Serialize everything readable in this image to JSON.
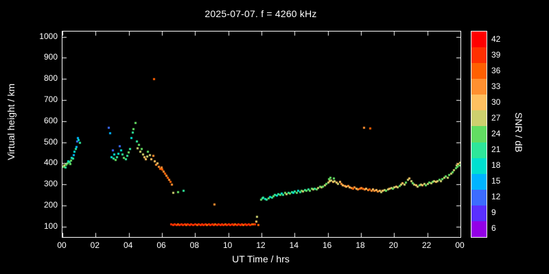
{
  "title": "2025-07-07. f = 4260 kHz",
  "chart_data": {
    "type": "scatter",
    "title": "2025-07-07. f = 4260 kHz",
    "xlabel": "UT Time / hrs",
    "ylabel": "Virtual height / km",
    "xlim": [
      0,
      24
    ],
    "ylim": [
      50,
      1025
    ],
    "background": "#000000",
    "frame_color": "#ffffff",
    "x_ticks": {
      "values": [
        0,
        2,
        4,
        6,
        8,
        10,
        12,
        14,
        16,
        18,
        20,
        22,
        24
      ],
      "labels": [
        "00",
        "02",
        "04",
        "06",
        "08",
        "10",
        "12",
        "14",
        "16",
        "18",
        "20",
        "22",
        "00"
      ]
    },
    "y_ticks": [
      100,
      200,
      300,
      400,
      500,
      600,
      700,
      800,
      900,
      1000
    ],
    "colorbar": {
      "label": "SNR / dB",
      "range": [
        4.5,
        43.5
      ],
      "ticks": [
        42,
        39,
        36,
        33,
        30,
        27,
        24,
        21,
        18,
        15,
        12,
        9,
        6
      ],
      "colors": [
        {
          "v": 42,
          "c": "#ff0000"
        },
        {
          "v": 39,
          "c": "#ff3000"
        },
        {
          "v": 36,
          "c": "#ff6000"
        },
        {
          "v": 33,
          "c": "#ff9030"
        },
        {
          "v": 30,
          "c": "#ffc060"
        },
        {
          "v": 27,
          "c": "#cdd06e"
        },
        {
          "v": 24,
          "c": "#62dd62"
        },
        {
          "v": 21,
          "c": "#2ee69a"
        },
        {
          "v": 18,
          "c": "#00e0d0"
        },
        {
          "v": 15,
          "c": "#00b4ff"
        },
        {
          "v": 12,
          "c": "#3c6cff"
        },
        {
          "v": 9,
          "c": "#5a30ff"
        },
        {
          "v": 6,
          "c": "#9400e6"
        }
      ]
    },
    "points": [
      [
        0.05,
        385,
        24
      ],
      [
        0.1,
        392,
        27
      ],
      [
        0.15,
        380,
        21
      ],
      [
        0.2,
        396,
        24
      ],
      [
        0.28,
        402,
        24
      ],
      [
        0.33,
        412,
        18
      ],
      [
        0.4,
        406,
        21
      ],
      [
        0.45,
        398,
        24
      ],
      [
        0.5,
        415,
        24
      ],
      [
        0.55,
        428,
        18
      ],
      [
        0.62,
        424,
        21
      ],
      [
        0.68,
        440,
        15
      ],
      [
        0.72,
        455,
        18
      ],
      [
        0.78,
        468,
        21
      ],
      [
        0.82,
        480,
        15
      ],
      [
        0.88,
        505,
        12
      ],
      [
        0.92,
        520,
        15
      ],
      [
        0.97,
        512,
        18
      ],
      [
        1.02,
        498,
        21
      ],
      [
        2.78,
        570,
        12
      ],
      [
        2.86,
        545,
        15
      ],
      [
        2.92,
        430,
        18
      ],
      [
        3,
        462,
        12
      ],
      [
        3.05,
        425,
        21
      ],
      [
        3.12,
        442,
        18
      ],
      [
        3.2,
        416,
        24
      ],
      [
        3.28,
        430,
        21
      ],
      [
        3.36,
        446,
        18
      ],
      [
        3.44,
        482,
        12
      ],
      [
        3.52,
        462,
        18
      ],
      [
        3.6,
        442,
        21
      ],
      [
        3.7,
        428,
        24
      ],
      [
        3.8,
        420,
        21
      ],
      [
        3.9,
        436,
        21
      ],
      [
        3.98,
        452,
        24
      ],
      [
        4.05,
        470,
        21
      ],
      [
        4.12,
        522,
        18
      ],
      [
        4.2,
        546,
        21
      ],
      [
        4.28,
        562,
        24
      ],
      [
        4.38,
        592,
        24
      ],
      [
        4.45,
        505,
        21
      ],
      [
        4.52,
        472,
        27
      ],
      [
        4.6,
        490,
        24
      ],
      [
        4.68,
        456,
        27
      ],
      [
        4.76,
        470,
        24
      ],
      [
        4.85,
        442,
        27
      ],
      [
        4.93,
        430,
        30
      ],
      [
        5,
        420,
        30
      ],
      [
        5.08,
        432,
        27
      ],
      [
        5.15,
        455,
        24
      ],
      [
        5.25,
        440,
        27
      ],
      [
        5.35,
        422,
        30
      ],
      [
        5.45,
        438,
        33
      ],
      [
        5.5,
        800,
        36
      ],
      [
        5.55,
        412,
        30
      ],
      [
        5.62,
        396,
        33
      ],
      [
        5.7,
        402,
        30
      ],
      [
        5.78,
        386,
        33
      ],
      [
        5.86,
        376,
        36
      ],
      [
        5.94,
        382,
        33
      ],
      [
        6.02,
        372,
        36
      ],
      [
        6.1,
        362,
        33
      ],
      [
        6.18,
        352,
        36
      ],
      [
        6.26,
        342,
        33
      ],
      [
        6.34,
        332,
        36
      ],
      [
        6.42,
        322,
        33
      ],
      [
        6.5,
        312,
        36
      ],
      [
        6.58,
        300,
        33
      ],
      [
        6.66,
        262,
        27
      ],
      [
        6.95,
        265,
        24
      ],
      [
        7.3,
        270,
        21
      ],
      [
        6.55,
        112,
        39
      ],
      [
        6.65,
        110,
        40
      ],
      [
        6.75,
        111,
        40
      ],
      [
        6.85,
        110,
        40
      ],
      [
        6.95,
        112,
        37
      ],
      [
        7.05,
        110,
        40
      ],
      [
        7.15,
        111,
        40
      ],
      [
        7.25,
        110,
        40
      ],
      [
        7.35,
        112,
        40
      ],
      [
        7.45,
        110,
        37
      ],
      [
        7.55,
        111,
        40
      ],
      [
        7.65,
        110,
        40
      ],
      [
        7.75,
        112,
        40
      ],
      [
        7.85,
        110,
        40
      ],
      [
        8,
        111,
        40
      ],
      [
        8.1,
        110,
        37
      ],
      [
        8.2,
        112,
        40
      ],
      [
        8.3,
        110,
        40
      ],
      [
        8.4,
        111,
        40
      ],
      [
        8.5,
        110,
        40
      ],
      [
        8.6,
        112,
        40
      ],
      [
        8.7,
        110,
        37
      ],
      [
        8.8,
        111,
        40
      ],
      [
        8.9,
        110,
        40
      ],
      [
        9,
        112,
        40
      ],
      [
        9.1,
        110,
        40
      ],
      [
        9.2,
        111,
        37
      ],
      [
        9.3,
        110,
        40
      ],
      [
        9.4,
        112,
        40
      ],
      [
        9.5,
        110,
        40
      ],
      [
        9.6,
        111,
        40
      ],
      [
        9.7,
        110,
        40
      ],
      [
        9.8,
        112,
        37
      ],
      [
        9.9,
        110,
        40
      ],
      [
        10,
        111,
        40
      ],
      [
        10.1,
        110,
        40
      ],
      [
        10.2,
        112,
        40
      ],
      [
        10.3,
        110,
        40
      ],
      [
        10.4,
        111,
        37
      ],
      [
        10.5,
        110,
        40
      ],
      [
        10.6,
        112,
        40
      ],
      [
        10.7,
        110,
        40
      ],
      [
        10.8,
        111,
        40
      ],
      [
        10.9,
        110,
        37
      ],
      [
        11,
        112,
        40
      ],
      [
        11.1,
        110,
        40
      ],
      [
        11.2,
        111,
        40
      ],
      [
        11.3,
        110,
        40
      ],
      [
        11.4,
        112,
        37
      ],
      [
        11.5,
        111,
        37
      ],
      [
        11.6,
        112,
        40
      ],
      [
        11.65,
        125,
        30
      ],
      [
        11.72,
        148,
        27
      ],
      [
        11.8,
        108,
        36
      ],
      [
        9.15,
        205,
        33
      ],
      [
        11.95,
        230,
        24
      ],
      [
        12.05,
        235,
        21
      ],
      [
        12.1,
        240,
        21
      ],
      [
        12.2,
        232,
        18
      ],
      [
        12.3,
        228,
        21
      ],
      [
        12.4,
        235,
        24
      ],
      [
        12.5,
        242,
        18
      ],
      [
        12.6,
        238,
        21
      ],
      [
        12.7,
        245,
        24
      ],
      [
        12.8,
        252,
        21
      ],
      [
        12.9,
        248,
        18
      ],
      [
        13,
        255,
        21
      ],
      [
        13.1,
        250,
        24
      ],
      [
        13.2,
        258,
        18
      ],
      [
        13.3,
        252,
        21
      ],
      [
        13.4,
        260,
        24
      ],
      [
        13.5,
        256,
        27
      ],
      [
        13.6,
        262,
        21
      ],
      [
        13.7,
        258,
        24
      ],
      [
        13.8,
        265,
        21
      ],
      [
        13.9,
        260,
        18
      ],
      [
        14,
        268,
        21
      ],
      [
        14.1,
        262,
        24
      ],
      [
        14.2,
        270,
        18
      ],
      [
        14.3,
        265,
        21
      ],
      [
        14.4,
        272,
        24
      ],
      [
        14.5,
        268,
        27
      ],
      [
        14.6,
        275,
        21
      ],
      [
        14.7,
        270,
        24
      ],
      [
        14.8,
        278,
        21
      ],
      [
        14.9,
        272,
        24
      ],
      [
        15,
        280,
        24
      ],
      [
        15.1,
        276,
        27
      ],
      [
        15.2,
        282,
        21
      ],
      [
        15.3,
        278,
        24
      ],
      [
        15.4,
        285,
        27
      ],
      [
        15.5,
        290,
        24
      ],
      [
        15.6,
        286,
        27
      ],
      [
        15.7,
        292,
        24
      ],
      [
        15.8,
        298,
        27
      ],
      [
        15.9,
        305,
        24
      ],
      [
        16,
        310,
        27
      ],
      [
        16.05,
        325,
        24
      ],
      [
        16.1,
        315,
        30
      ],
      [
        16.15,
        332,
        24
      ],
      [
        16.2,
        320,
        27
      ],
      [
        16.3,
        312,
        30
      ],
      [
        16.35,
        328,
        24
      ],
      [
        16.4,
        318,
        27
      ],
      [
        16.5,
        310,
        30
      ],
      [
        16.6,
        305,
        27
      ],
      [
        16.7,
        312,
        30
      ],
      [
        16.8,
        302,
        33
      ],
      [
        16.9,
        298,
        30
      ],
      [
        17,
        295,
        33
      ],
      [
        17.1,
        290,
        30
      ],
      [
        17.2,
        293,
        33
      ],
      [
        17.3,
        288,
        30
      ],
      [
        17.4,
        285,
        33
      ],
      [
        17.5,
        282,
        36
      ],
      [
        17.6,
        286,
        33
      ],
      [
        17.7,
        280,
        30
      ],
      [
        17.8,
        278,
        33
      ],
      [
        17.9,
        282,
        36
      ],
      [
        18,
        285,
        33
      ],
      [
        18.1,
        280,
        36
      ],
      [
        18.2,
        276,
        33
      ],
      [
        18.3,
        280,
        30
      ],
      [
        18.4,
        275,
        33
      ],
      [
        18.5,
        278,
        36
      ],
      [
        18.6,
        272,
        33
      ],
      [
        18.7,
        276,
        30
      ],
      [
        18.8,
        270,
        33
      ],
      [
        18.9,
        274,
        30
      ],
      [
        18.15,
        570,
        33
      ],
      [
        18.55,
        568,
        36
      ],
      [
        19,
        268,
        33
      ],
      [
        19.1,
        272,
        30
      ],
      [
        19.2,
        266,
        27
      ],
      [
        19.3,
        270,
        30
      ],
      [
        19.4,
        275,
        27
      ],
      [
        19.5,
        270,
        24
      ],
      [
        19.6,
        276,
        27
      ],
      [
        19.7,
        280,
        30
      ],
      [
        19.8,
        284,
        27
      ],
      [
        19.9,
        280,
        24
      ],
      [
        20,
        286,
        27
      ],
      [
        20.1,
        290,
        30
      ],
      [
        20.2,
        288,
        27
      ],
      [
        20.3,
        294,
        24
      ],
      [
        20.4,
        300,
        27
      ],
      [
        20.5,
        306,
        30
      ],
      [
        20.6,
        300,
        27
      ],
      [
        20.7,
        310,
        24
      ],
      [
        20.8,
        322,
        27
      ],
      [
        20.9,
        330,
        30
      ],
      [
        21,
        318,
        27
      ],
      [
        21.1,
        308,
        24
      ],
      [
        21.2,
        300,
        27
      ],
      [
        21.3,
        296,
        30
      ],
      [
        21.4,
        292,
        27
      ],
      [
        21.5,
        296,
        24
      ],
      [
        21.6,
        300,
        27
      ],
      [
        21.7,
        296,
        30
      ],
      [
        21.8,
        302,
        27
      ],
      [
        21.9,
        298,
        24
      ],
      [
        22,
        305,
        27
      ],
      [
        22.1,
        310,
        24
      ],
      [
        22.2,
        306,
        27
      ],
      [
        22.3,
        312,
        24
      ],
      [
        22.4,
        316,
        27
      ],
      [
        22.5,
        312,
        30
      ],
      [
        22.6,
        318,
        27
      ],
      [
        22.7,
        322,
        24
      ],
      [
        22.8,
        318,
        27
      ],
      [
        22.9,
        326,
        24
      ],
      [
        23,
        332,
        27
      ],
      [
        23.1,
        338,
        24
      ],
      [
        23.2,
        334,
        27
      ],
      [
        23.3,
        345,
        24
      ],
      [
        23.4,
        352,
        27
      ],
      [
        23.5,
        360,
        24
      ],
      [
        23.6,
        368,
        27
      ],
      [
        23.7,
        378,
        24
      ],
      [
        23.75,
        390,
        27
      ],
      [
        23.8,
        385,
        24
      ],
      [
        23.85,
        398,
        30
      ],
      [
        23.9,
        392,
        24
      ],
      [
        23.95,
        405,
        27
      ]
    ]
  }
}
